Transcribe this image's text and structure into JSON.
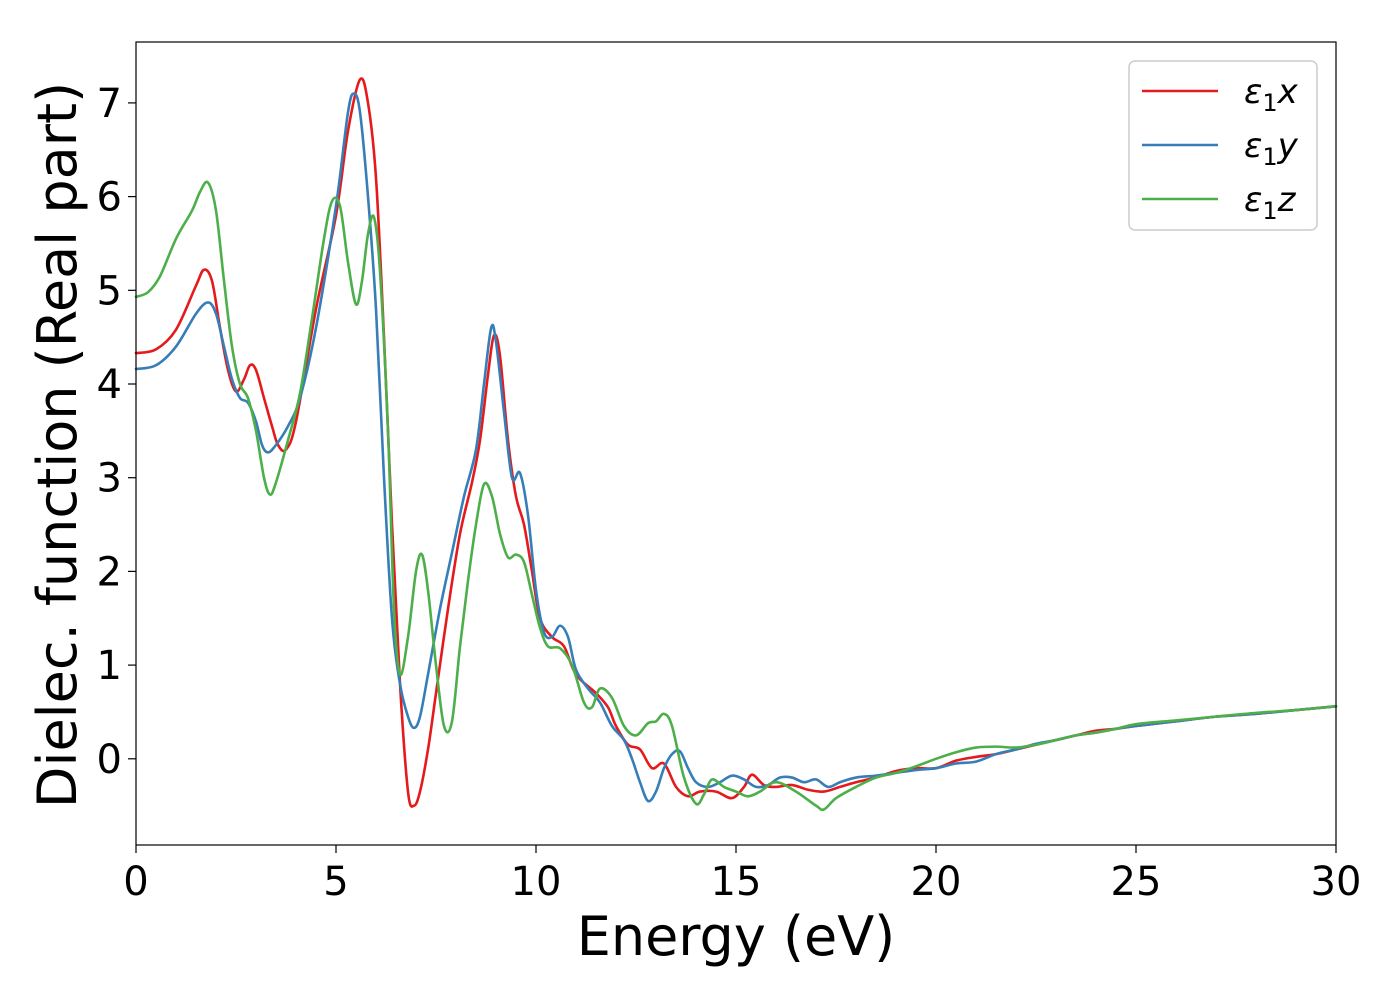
{
  "chart_data": {
    "type": "line",
    "title": "",
    "xlabel": "Energy (eV)",
    "ylabel": "Dielec. function (Real part)",
    "xlim": [
      0,
      30
    ],
    "ylim": [
      -0.92,
      7.65
    ],
    "xticks": [
      0,
      5,
      10,
      15,
      20,
      25,
      30
    ],
    "yticks": [
      0,
      1,
      2,
      3,
      4,
      5,
      6,
      7
    ],
    "grid": false,
    "legend": {
      "position": "top-right"
    },
    "series": [
      {
        "name": "ε1x",
        "symbol": "ε",
        "subscript": "1",
        "suffix": "x",
        "color": "#e41a1c",
        "points": [
          [
            0,
            4.33
          ],
          [
            0.5,
            4.37
          ],
          [
            1.0,
            4.58
          ],
          [
            1.5,
            5.05
          ],
          [
            1.7,
            5.22
          ],
          [
            1.9,
            5.1
          ],
          [
            2.1,
            4.6
          ],
          [
            2.3,
            4.15
          ],
          [
            2.5,
            3.92
          ],
          [
            2.7,
            4.05
          ],
          [
            2.85,
            4.2
          ],
          [
            3.0,
            4.15
          ],
          [
            3.2,
            3.85
          ],
          [
            3.4,
            3.55
          ],
          [
            3.55,
            3.35
          ],
          [
            3.75,
            3.3
          ],
          [
            4.0,
            3.6
          ],
          [
            4.5,
            4.8
          ],
          [
            5.0,
            5.8
          ],
          [
            5.3,
            6.7
          ],
          [
            5.6,
            7.25
          ],
          [
            5.8,
            7.0
          ],
          [
            6.0,
            6.2
          ],
          [
            6.2,
            4.5
          ],
          [
            6.4,
            2.5
          ],
          [
            6.6,
            0.8
          ],
          [
            6.8,
            -0.35
          ],
          [
            6.95,
            -0.5
          ],
          [
            7.1,
            -0.35
          ],
          [
            7.3,
            0.1
          ],
          [
            7.5,
            0.7
          ],
          [
            7.8,
            1.6
          ],
          [
            8.1,
            2.4
          ],
          [
            8.4,
            2.95
          ],
          [
            8.6,
            3.4
          ],
          [
            8.8,
            4.1
          ],
          [
            8.95,
            4.52
          ],
          [
            9.1,
            4.3
          ],
          [
            9.3,
            3.4
          ],
          [
            9.5,
            2.8
          ],
          [
            9.7,
            2.5
          ],
          [
            9.9,
            2.0
          ],
          [
            10.1,
            1.5
          ],
          [
            10.4,
            1.3
          ],
          [
            10.7,
            1.2
          ],
          [
            11.0,
            0.9
          ],
          [
            11.5,
            0.7
          ],
          [
            11.8,
            0.55
          ],
          [
            12.0,
            0.35
          ],
          [
            12.3,
            0.15
          ],
          [
            12.6,
            0.1
          ],
          [
            12.9,
            -0.1
          ],
          [
            13.2,
            -0.05
          ],
          [
            13.5,
            -0.3
          ],
          [
            13.8,
            -0.4
          ],
          [
            14.1,
            -0.35
          ],
          [
            14.5,
            -0.35
          ],
          [
            14.9,
            -0.42
          ],
          [
            15.2,
            -0.3
          ],
          [
            15.4,
            -0.17
          ],
          [
            15.7,
            -0.28
          ],
          [
            16.0,
            -0.3
          ],
          [
            16.4,
            -0.28
          ],
          [
            16.8,
            -0.33
          ],
          [
            17.2,
            -0.35
          ],
          [
            17.6,
            -0.3
          ],
          [
            18.0,
            -0.25
          ],
          [
            18.5,
            -0.2
          ],
          [
            19.0,
            -0.13
          ],
          [
            19.5,
            -0.1
          ],
          [
            20.0,
            -0.1
          ],
          [
            20.5,
            -0.02
          ],
          [
            21.0,
            0.02
          ],
          [
            21.5,
            0.05
          ],
          [
            22.0,
            0.1
          ],
          [
            22.5,
            0.15
          ],
          [
            23.0,
            0.2
          ],
          [
            23.5,
            0.25
          ],
          [
            24.0,
            0.3
          ],
          [
            24.5,
            0.32
          ],
          [
            25.0,
            0.35
          ],
          [
            26.0,
            0.4
          ],
          [
            27.0,
            0.45
          ],
          [
            28.0,
            0.48
          ],
          [
            29.0,
            0.52
          ],
          [
            30.0,
            0.56
          ]
        ]
      },
      {
        "name": "ε1y",
        "symbol": "ε",
        "subscript": "1",
        "suffix": "y",
        "color": "#377eb8",
        "points": [
          [
            0,
            4.16
          ],
          [
            0.5,
            4.2
          ],
          [
            1.0,
            4.4
          ],
          [
            1.5,
            4.75
          ],
          [
            1.8,
            4.87
          ],
          [
            2.0,
            4.75
          ],
          [
            2.2,
            4.4
          ],
          [
            2.4,
            4.05
          ],
          [
            2.6,
            3.85
          ],
          [
            2.8,
            3.8
          ],
          [
            3.0,
            3.6
          ],
          [
            3.15,
            3.35
          ],
          [
            3.3,
            3.27
          ],
          [
            3.5,
            3.35
          ],
          [
            3.8,
            3.55
          ],
          [
            4.1,
            3.85
          ],
          [
            4.5,
            4.6
          ],
          [
            5.0,
            5.9
          ],
          [
            5.3,
            6.9
          ],
          [
            5.45,
            7.1
          ],
          [
            5.6,
            6.9
          ],
          [
            5.8,
            6.0
          ],
          [
            6.0,
            4.8
          ],
          [
            6.2,
            3.0
          ],
          [
            6.4,
            1.5
          ],
          [
            6.6,
            0.8
          ],
          [
            6.8,
            0.45
          ],
          [
            6.95,
            0.33
          ],
          [
            7.1,
            0.45
          ],
          [
            7.3,
            0.9
          ],
          [
            7.6,
            1.6
          ],
          [
            7.9,
            2.2
          ],
          [
            8.2,
            2.8
          ],
          [
            8.5,
            3.3
          ],
          [
            8.7,
            4.0
          ],
          [
            8.88,
            4.6
          ],
          [
            9.0,
            4.45
          ],
          [
            9.2,
            3.7
          ],
          [
            9.4,
            3.0
          ],
          [
            9.6,
            3.05
          ],
          [
            9.8,
            2.6
          ],
          [
            10.0,
            1.8
          ],
          [
            10.2,
            1.35
          ],
          [
            10.4,
            1.3
          ],
          [
            10.6,
            1.42
          ],
          [
            10.8,
            1.3
          ],
          [
            11.0,
            0.95
          ],
          [
            11.3,
            0.75
          ],
          [
            11.6,
            0.6
          ],
          [
            11.9,
            0.35
          ],
          [
            12.2,
            0.2
          ],
          [
            12.4,
            0.0
          ],
          [
            12.6,
            -0.25
          ],
          [
            12.8,
            -0.45
          ],
          [
            13.0,
            -0.35
          ],
          [
            13.2,
            -0.1
          ],
          [
            13.4,
            0.05
          ],
          [
            13.6,
            0.08
          ],
          [
            13.8,
            -0.1
          ],
          [
            14.0,
            -0.25
          ],
          [
            14.3,
            -0.3
          ],
          [
            14.6,
            -0.25
          ],
          [
            14.9,
            -0.18
          ],
          [
            15.2,
            -0.22
          ],
          [
            15.5,
            -0.3
          ],
          [
            15.8,
            -0.28
          ],
          [
            16.1,
            -0.2
          ],
          [
            16.4,
            -0.2
          ],
          [
            16.7,
            -0.25
          ],
          [
            17.0,
            -0.22
          ],
          [
            17.3,
            -0.3
          ],
          [
            17.6,
            -0.25
          ],
          [
            18.0,
            -0.2
          ],
          [
            18.5,
            -0.18
          ],
          [
            19.0,
            -0.15
          ],
          [
            19.5,
            -0.12
          ],
          [
            20.0,
            -0.1
          ],
          [
            20.5,
            -0.05
          ],
          [
            21.0,
            -0.03
          ],
          [
            21.5,
            0.05
          ],
          [
            22.0,
            0.1
          ],
          [
            22.5,
            0.16
          ],
          [
            23.0,
            0.2
          ],
          [
            23.5,
            0.25
          ],
          [
            24.0,
            0.28
          ],
          [
            24.5,
            0.32
          ],
          [
            25.0,
            0.35
          ],
          [
            26.0,
            0.4
          ],
          [
            27.0,
            0.45
          ],
          [
            28.0,
            0.48
          ],
          [
            29.0,
            0.52
          ],
          [
            30.0,
            0.56
          ]
        ]
      },
      {
        "name": "ε1z",
        "symbol": "ε",
        "subscript": "1",
        "suffix": "z",
        "color": "#4daf4a",
        "points": [
          [
            0,
            4.93
          ],
          [
            0.3,
            4.98
          ],
          [
            0.6,
            5.15
          ],
          [
            1.0,
            5.55
          ],
          [
            1.4,
            5.85
          ],
          [
            1.6,
            6.05
          ],
          [
            1.8,
            6.15
          ],
          [
            2.0,
            5.85
          ],
          [
            2.2,
            5.1
          ],
          [
            2.4,
            4.4
          ],
          [
            2.6,
            4.0
          ],
          [
            2.8,
            3.85
          ],
          [
            3.0,
            3.5
          ],
          [
            3.2,
            3.0
          ],
          [
            3.35,
            2.82
          ],
          [
            3.5,
            2.95
          ],
          [
            3.8,
            3.4
          ],
          [
            4.1,
            3.9
          ],
          [
            4.4,
            4.7
          ],
          [
            4.7,
            5.55
          ],
          [
            4.9,
            5.95
          ],
          [
            5.1,
            5.9
          ],
          [
            5.3,
            5.3
          ],
          [
            5.5,
            4.85
          ],
          [
            5.65,
            5.1
          ],
          [
            5.8,
            5.6
          ],
          [
            5.95,
            5.78
          ],
          [
            6.1,
            5.2
          ],
          [
            6.3,
            3.5
          ],
          [
            6.45,
            1.6
          ],
          [
            6.6,
            0.9
          ],
          [
            6.8,
            1.3
          ],
          [
            7.0,
            2.0
          ],
          [
            7.15,
            2.18
          ],
          [
            7.3,
            1.8
          ],
          [
            7.5,
            1.0
          ],
          [
            7.7,
            0.35
          ],
          [
            7.9,
            0.4
          ],
          [
            8.1,
            1.2
          ],
          [
            8.3,
            1.9
          ],
          [
            8.5,
            2.5
          ],
          [
            8.7,
            2.93
          ],
          [
            8.9,
            2.8
          ],
          [
            9.1,
            2.4
          ],
          [
            9.3,
            2.15
          ],
          [
            9.5,
            2.18
          ],
          [
            9.7,
            2.1
          ],
          [
            9.9,
            1.75
          ],
          [
            10.1,
            1.4
          ],
          [
            10.3,
            1.2
          ],
          [
            10.6,
            1.18
          ],
          [
            10.9,
            1.0
          ],
          [
            11.2,
            0.6
          ],
          [
            11.4,
            0.55
          ],
          [
            11.6,
            0.75
          ],
          [
            11.9,
            0.65
          ],
          [
            12.2,
            0.35
          ],
          [
            12.5,
            0.25
          ],
          [
            12.8,
            0.38
          ],
          [
            13.0,
            0.4
          ],
          [
            13.2,
            0.48
          ],
          [
            13.4,
            0.35
          ],
          [
            13.7,
            -0.2
          ],
          [
            14.0,
            -0.48
          ],
          [
            14.2,
            -0.38
          ],
          [
            14.4,
            -0.22
          ],
          [
            14.7,
            -0.3
          ],
          [
            15.0,
            -0.35
          ],
          [
            15.3,
            -0.4
          ],
          [
            15.6,
            -0.35
          ],
          [
            16.0,
            -0.25
          ],
          [
            16.5,
            -0.35
          ],
          [
            17.0,
            -0.5
          ],
          [
            17.2,
            -0.54
          ],
          [
            17.5,
            -0.42
          ],
          [
            18.0,
            -0.3
          ],
          [
            18.5,
            -0.2
          ],
          [
            19.0,
            -0.15
          ],
          [
            19.5,
            -0.08
          ],
          [
            20.0,
            0.0
          ],
          [
            20.5,
            0.07
          ],
          [
            21.0,
            0.12
          ],
          [
            21.5,
            0.13
          ],
          [
            22.0,
            0.12
          ],
          [
            22.5,
            0.15
          ],
          [
            23.0,
            0.2
          ],
          [
            23.5,
            0.25
          ],
          [
            24.0,
            0.28
          ],
          [
            24.5,
            0.32
          ],
          [
            25.0,
            0.37
          ],
          [
            26.0,
            0.41
          ],
          [
            27.0,
            0.45
          ],
          [
            28.0,
            0.49
          ],
          [
            29.0,
            0.52
          ],
          [
            30.0,
            0.56
          ]
        ]
      }
    ]
  }
}
